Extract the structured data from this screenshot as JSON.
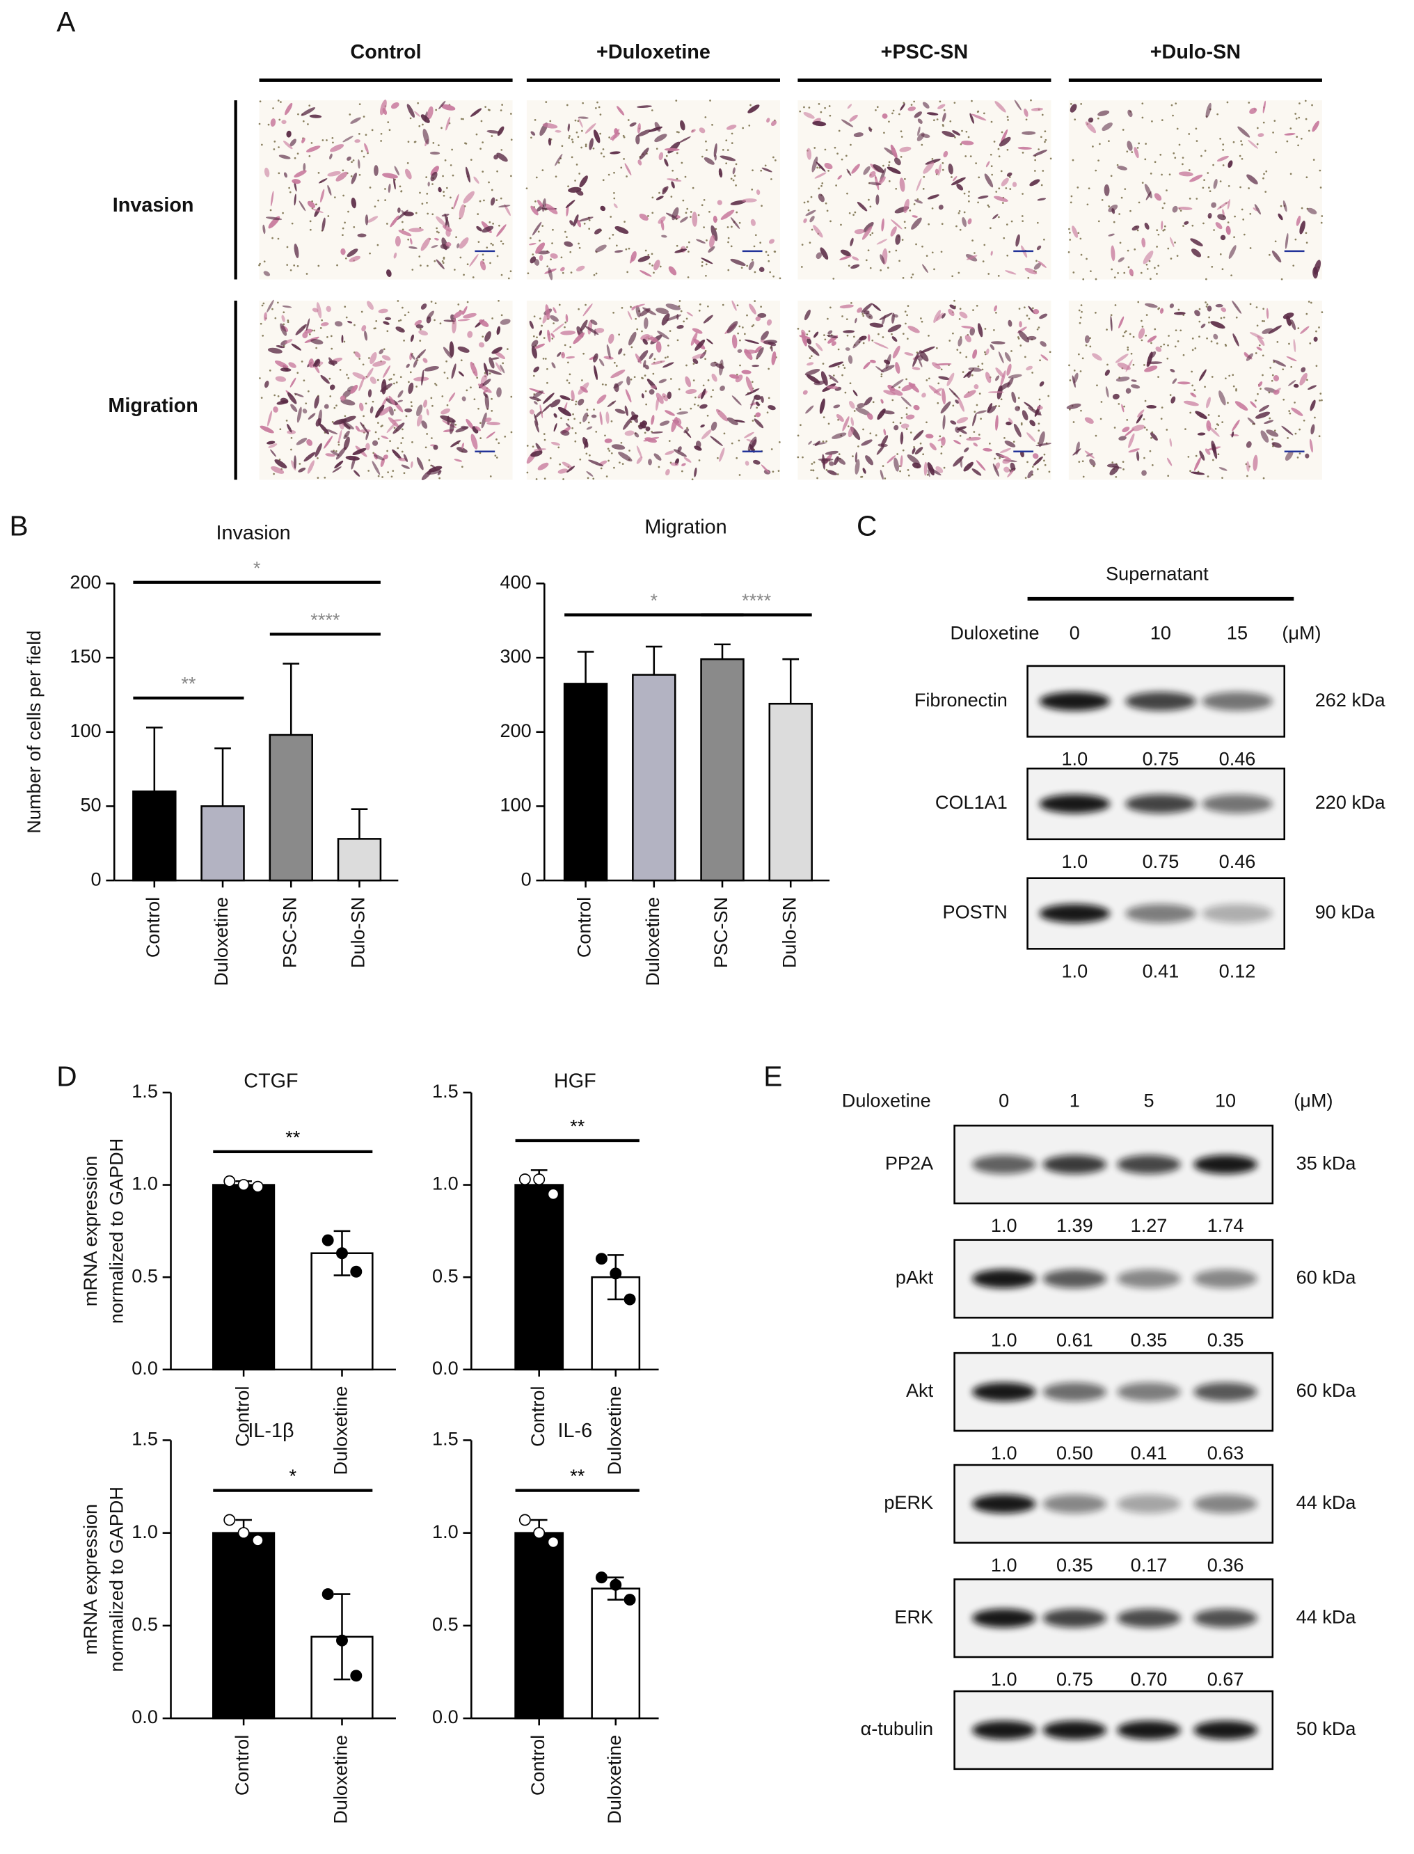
{
  "panel_labels": [
    "A",
    "B",
    "C",
    "D",
    "E"
  ],
  "panel_a": {
    "columns": [
      "Control",
      "+Duloxetine",
      "+PSC-SN",
      "+Dulo-SN"
    ],
    "rows": [
      "Invasion",
      "Migration"
    ]
  },
  "chart_data": [
    {
      "type": "bar",
      "title": "Invasion",
      "ylabel": [
        "Number of cells per field"
      ],
      "categories": [
        "Control",
        "Duloxetine",
        "PSC-SN",
        "Dulo-SN"
      ],
      "values": [
        60,
        50,
        98,
        28
      ],
      "errors": [
        43,
        39,
        48,
        20
      ],
      "error_direction": "up",
      "colors": [
        "#000000",
        "#b3b3c2",
        "#8a8a8a",
        "#dcdcdc"
      ],
      "ylim": [
        0,
        200
      ],
      "yticks": [
        0,
        50,
        100,
        150,
        200
      ],
      "significance_color": "#888888",
      "significance": [
        {
          "groups": [
            0,
            1
          ],
          "label": "**"
        },
        {
          "groups": [
            2,
            3
          ],
          "label": "****"
        },
        {
          "groups": [
            0,
            3
          ],
          "label": "*"
        }
      ]
    },
    {
      "type": "bar",
      "title": "Migration",
      "categories": [
        "Control",
        "Duloxetine",
        "PSC-SN",
        "Dulo-SN"
      ],
      "values": [
        265,
        277,
        298,
        238
      ],
      "errors": [
        43,
        38,
        20,
        60
      ],
      "error_direction": "up",
      "colors": [
        "#000000",
        "#b3b3c2",
        "#8a8a8a",
        "#dcdcdc"
      ],
      "ylim": [
        0,
        400
      ],
      "yticks": [
        0,
        100,
        200,
        300,
        400
      ],
      "significance_color": "#888888",
      "significance": [
        {
          "groups": [
            0,
            2
          ],
          "label": "*"
        },
        {
          "groups": [
            2,
            3
          ],
          "label": "****"
        }
      ]
    },
    {
      "type": "bar",
      "title": "CTGF",
      "ylabel": [
        "mRNA expression",
        "normalized to GAPDH"
      ],
      "categories": [
        "Control",
        "Duloxetine"
      ],
      "values": [
        1.0,
        0.63
      ],
      "errors": [
        0.02,
        0.12
      ],
      "points": [
        [
          1.02,
          1.0,
          0.99
        ],
        [
          0.7,
          0.63,
          0.53
        ]
      ],
      "error_direction": "both",
      "colors": [
        "#000000",
        "#ffffff"
      ],
      "ylim": [
        0,
        1.5
      ],
      "yticks": [
        {
          "value": 0,
          "label": "0.0"
        },
        0.5,
        {
          "value": 1,
          "label": "1.0"
        },
        1.5
      ],
      "significance_color": "#000000",
      "significance": [
        {
          "groups": [
            0,
            1
          ],
          "label": "**"
        }
      ]
    },
    {
      "type": "bar",
      "title": "HGF",
      "categories": [
        "Control",
        "Duloxetine"
      ],
      "values": [
        1.0,
        0.5
      ],
      "errors": [
        0.08,
        0.12
      ],
      "points": [
        [
          1.03,
          1.03,
          0.95
        ],
        [
          0.6,
          0.52,
          0.38
        ]
      ],
      "error_direction": "both",
      "colors": [
        "#000000",
        "#ffffff"
      ],
      "ylim": [
        0,
        1.5
      ],
      "yticks": [
        {
          "value": 0,
          "label": "0.0"
        },
        0.5,
        {
          "value": 1,
          "label": "1.0"
        },
        1.5
      ],
      "significance_color": "#000000",
      "significance": [
        {
          "groups": [
            0,
            1
          ],
          "label": "**"
        }
      ]
    },
    {
      "type": "bar",
      "title": "IL-1β",
      "ylabel": [
        "mRNA expression",
        "normalized to GAPDH"
      ],
      "categories": [
        "Control",
        "Duloxetine"
      ],
      "values": [
        1.0,
        0.44
      ],
      "errors": [
        0.07,
        0.23
      ],
      "points": [
        [
          1.07,
          1.0,
          0.96
        ],
        [
          0.67,
          0.42,
          0.23
        ]
      ],
      "error_direction": "both",
      "colors": [
        "#000000",
        "#ffffff"
      ],
      "ylim": [
        0,
        1.5
      ],
      "yticks": [
        {
          "value": 0,
          "label": "0.0"
        },
        0.5,
        {
          "value": 1,
          "label": "1.0"
        },
        1.5
      ],
      "significance_color": "#000000",
      "significance": [
        {
          "groups": [
            0,
            1
          ],
          "label": "*"
        }
      ]
    },
    {
      "type": "bar",
      "title": "IL-6",
      "categories": [
        "Control",
        "Duloxetine"
      ],
      "values": [
        1.0,
        0.7
      ],
      "errors": [
        0.07,
        0.06
      ],
      "points": [
        [
          1.07,
          1.0,
          0.95
        ],
        [
          0.76,
          0.72,
          0.64
        ]
      ],
      "error_direction": "both",
      "colors": [
        "#000000",
        "#ffffff"
      ],
      "ylim": [
        0,
        1.5
      ],
      "yticks": [
        {
          "value": 0,
          "label": "0.0"
        },
        0.5,
        {
          "value": 1,
          "label": "1.0"
        },
        1.5
      ],
      "significance_color": "#000000",
      "significance": [
        {
          "groups": [
            0,
            1
          ],
          "label": "**"
        }
      ]
    }
  ],
  "panel_c": {
    "title": "Supernatant",
    "treatment": "Duloxetine",
    "lanes": [
      "0",
      "10",
      "15"
    ],
    "unit": "(μM)",
    "blots": [
      {
        "name": "Fibronectin",
        "size": "262 kDa",
        "quant": [
          "1.0",
          "0.75",
          "0.46"
        ]
      },
      {
        "name": "COL1A1",
        "size": "220 kDa",
        "quant": [
          "1.0",
          "0.75",
          "0.46"
        ]
      },
      {
        "name": "POSTN",
        "size": "90 kDa",
        "quant": [
          "1.0",
          "0.41",
          "0.12"
        ]
      }
    ]
  },
  "panel_e": {
    "treatment": "Duloxetine",
    "lanes": [
      "0",
      "1",
      "5",
      "10"
    ],
    "unit": "(μM)",
    "blots": [
      {
        "name": "PP2A",
        "size": "35 kDa",
        "quant": [
          "1.0",
          "1.39",
          "1.27",
          "1.74"
        ]
      },
      {
        "name": "pAkt",
        "size": "60 kDa",
        "quant": [
          "1.0",
          "0.61",
          "0.35",
          "0.35"
        ]
      },
      {
        "name": "Akt",
        "size": "60 kDa",
        "quant": [
          "1.0",
          "0.50",
          "0.41",
          "0.63"
        ]
      },
      {
        "name": "pERK",
        "size": "44 kDa",
        "quant": [
          "1.0",
          "0.35",
          "0.17",
          "0.36"
        ]
      },
      {
        "name": "ERK",
        "size": "44 kDa",
        "quant": [
          "1.0",
          "0.75",
          "0.70",
          "0.67"
        ]
      },
      {
        "name": "α-tubulin",
        "size": "50 kDa"
      }
    ]
  }
}
